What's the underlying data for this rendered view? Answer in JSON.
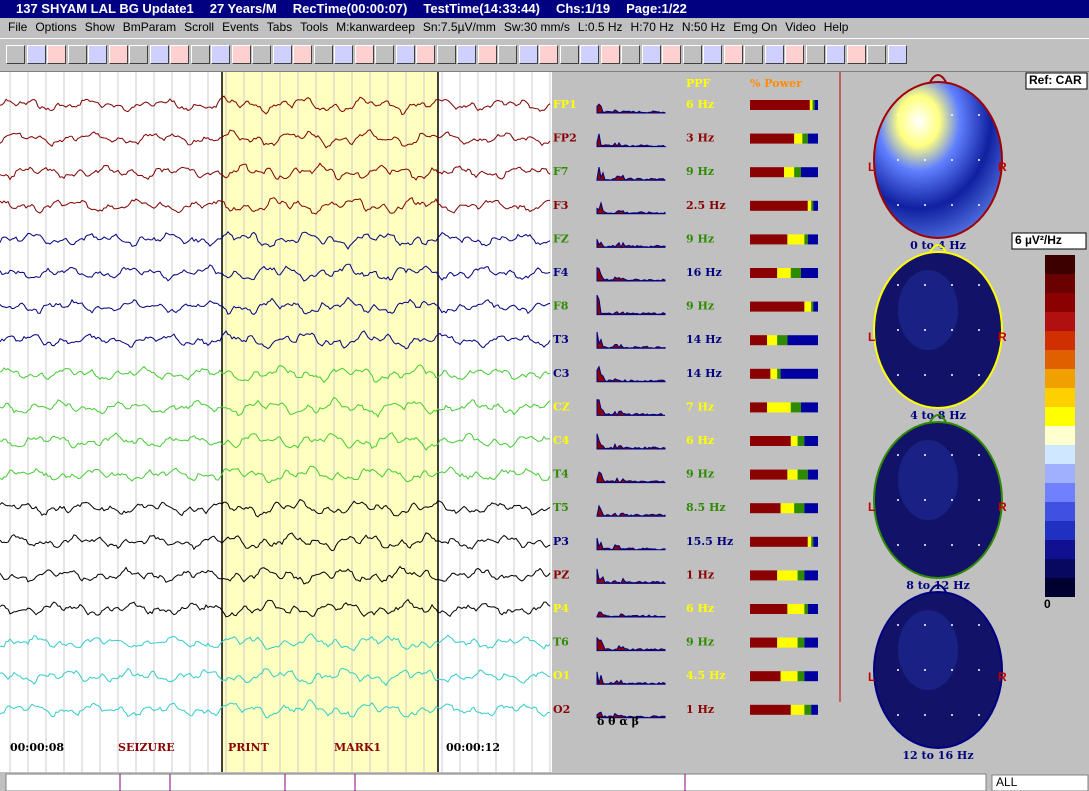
{
  "title_bar": [
    "137  SHYAM LAL BG Update1",
    "27 Years/M",
    "RecTime(00:00:07)",
    "TestTime(14:33:44)",
    "Chs:1/19",
    "Page:1/22"
  ],
  "menu": [
    "File",
    "Options",
    "Show",
    "BmParam",
    "Scroll",
    "Events",
    "Tabs",
    "Tools",
    "M:kanwardeep",
    "Sn:7.5µV/mm",
    "Sw:30 mm/s",
    "L:0.5 Hz",
    "H:70 Hz",
    "N:50 Hz",
    "Emg On",
    "Video",
    "Help"
  ],
  "headers": {
    "ppf": "PPF",
    "power": "% Power",
    "ref": "Ref: CAR"
  },
  "power_colors": [
    "#8b0000",
    "#ffff00",
    "#2e8b00",
    "#0000a0"
  ],
  "channels": [
    {
      "label": "FP1",
      "ppf": "6 Hz",
      "color": "#ffff00",
      "trace": "#800000",
      "power": [
        88,
        4,
        3,
        5
      ]
    },
    {
      "label": "FP2",
      "ppf": "3 Hz",
      "color": "#8b0000",
      "trace": "#800000",
      "power": [
        65,
        12,
        8,
        15
      ]
    },
    {
      "label": "F7",
      "ppf": "9 Hz",
      "color": "#2e8b00",
      "trace": "#800000",
      "power": [
        50,
        15,
        10,
        25
      ]
    },
    {
      "label": "F3",
      "ppf": "2.5 Hz",
      "color": "#8b0000",
      "trace": "#800000",
      "power": [
        85,
        5,
        3,
        7
      ]
    },
    {
      "label": "FZ",
      "ppf": "9 Hz",
      "color": "#2e8b00",
      "trace": "#000080",
      "power": [
        55,
        25,
        5,
        15
      ]
    },
    {
      "label": "F4",
      "ppf": "16 Hz",
      "color": "#000080",
      "trace": "#000080",
      "power": [
        40,
        20,
        15,
        25
      ]
    },
    {
      "label": "F8",
      "ppf": "9 Hz",
      "color": "#2e8b00",
      "trace": "#000080",
      "power": [
        80,
        10,
        3,
        7
      ]
    },
    {
      "label": "T3",
      "ppf": "14 Hz",
      "color": "#000080",
      "trace": "#000080",
      "power": [
        25,
        15,
        15,
        45
      ]
    },
    {
      "label": "C3",
      "ppf": "14 Hz",
      "color": "#000080",
      "trace": "#44cc33",
      "power": [
        30,
        10,
        5,
        55
      ]
    },
    {
      "label": "CZ",
      "ppf": "7 Hz",
      "color": "#ffff00",
      "trace": "#44cc33",
      "power": [
        25,
        35,
        15,
        25
      ]
    },
    {
      "label": "C4",
      "ppf": "6 Hz",
      "color": "#ffff00",
      "trace": "#44cc33",
      "power": [
        60,
        10,
        10,
        20
      ]
    },
    {
      "label": "T4",
      "ppf": "9 Hz",
      "color": "#2e8b00",
      "trace": "#44cc33",
      "power": [
        55,
        15,
        15,
        15
      ]
    },
    {
      "label": "T5",
      "ppf": "8.5 Hz",
      "color": "#2e8b00",
      "trace": "#000000",
      "power": [
        45,
        20,
        15,
        20
      ]
    },
    {
      "label": "P3",
      "ppf": "15.5 Hz",
      "color": "#000080",
      "trace": "#000000",
      "power": [
        85,
        5,
        3,
        7
      ]
    },
    {
      "label": "PZ",
      "ppf": "1 Hz",
      "color": "#8b0000",
      "trace": "#000000",
      "power": [
        40,
        30,
        10,
        20
      ]
    },
    {
      "label": "P4",
      "ppf": "6 Hz",
      "color": "#ffff00",
      "trace": "#000000",
      "power": [
        55,
        25,
        5,
        15
      ]
    },
    {
      "label": "T6",
      "ppf": "9 Hz",
      "color": "#2e8b00",
      "trace": "#33cccc",
      "power": [
        40,
        30,
        10,
        20
      ]
    },
    {
      "label": "O1",
      "ppf": "4.5 Hz",
      "color": "#ffff00",
      "trace": "#33cccc",
      "power": [
        45,
        25,
        10,
        20
      ]
    },
    {
      "label": "O2",
      "ppf": "1 Hz",
      "color": "#8b0000",
      "trace": "#33cccc",
      "power": [
        60,
        20,
        10,
        10
      ]
    }
  ],
  "band_symbols": "δ θ α β",
  "maps": [
    {
      "label": "0 to 4 Hz",
      "outline": "#a00000",
      "left": "L",
      "right": "R"
    },
    {
      "label": "4 to 8 Hz",
      "outline": "#ffff00",
      "left": "L",
      "right": "R"
    },
    {
      "label": "8 to 12 Hz",
      "outline": "#2e8b00",
      "left": "L",
      "right": "R"
    },
    {
      "label": "12 to 16 Hz",
      "outline": "#000080",
      "left": "L",
      "right": "R"
    }
  ],
  "scale": {
    "unit": "6 µV²/Hz",
    "min": "0"
  },
  "markers": [
    "00:00:08",
    "SEIZURE",
    "PRINT",
    "MARK1",
    "00:00:12"
  ],
  "footer": {
    "dropdown": "ALL"
  }
}
